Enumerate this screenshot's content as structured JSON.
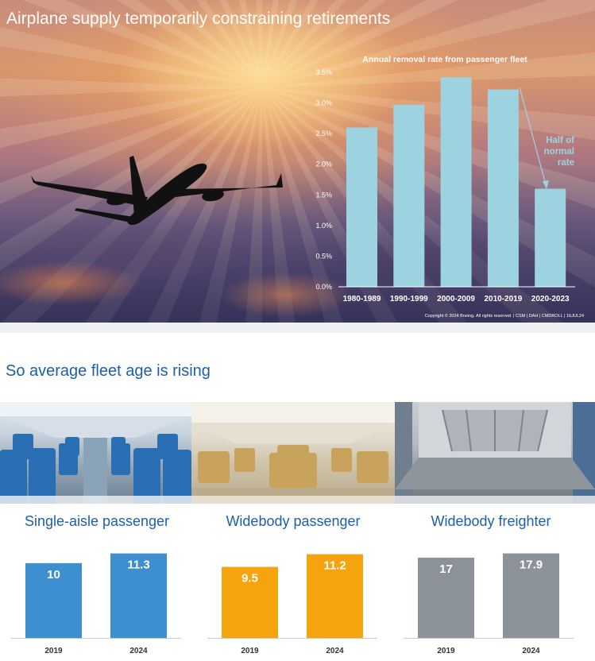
{
  "hero": {
    "title": "Airplane supply temporarily constraining retirements",
    "copyright": "Copyright © 2024 Boeing. All rights reserved.  |  CSM  |  DAH  |  CMDROLL  |  16JUL24"
  },
  "section": {
    "title": "So average fleet age is rising"
  },
  "panels": [
    {
      "title": "Single-aisle passenger",
      "photo_icon": "single-aisle-cabin-photo"
    },
    {
      "title": "Widebody passenger",
      "photo_icon": "widebody-cabin-photo"
    },
    {
      "title": "Widebody freighter",
      "photo_icon": "freighter-cargo-hold-photo"
    }
  ],
  "colors": {
    "removal_bar": "#9dd3e0",
    "single_aisle": "#3d8fd0",
    "widebody_passenger": "#f5a40d",
    "widebody_freighter": "#8c9299",
    "title_blue": "#1d5fa8"
  },
  "chart_data": [
    {
      "type": "bar",
      "title": "Annual removal rate from passenger fleet",
      "categories": [
        "1980-1989",
        "1990-1999",
        "2000-2009",
        "2010-2019",
        "2020-2023"
      ],
      "values": [
        2.6,
        2.97,
        3.42,
        3.22,
        1.6
      ],
      "unit": "%",
      "ylim": [
        0,
        3.5
      ],
      "yticks": [
        "0.0%",
        "0.5%",
        "1.0%",
        "1.5%",
        "2.0%",
        "2.5%",
        "3.0%",
        "3.5%"
      ],
      "annotation": "Half of normal rate",
      "grid": false
    },
    {
      "type": "bar",
      "title": "Single-aisle passenger",
      "categories": [
        "2019",
        "2024"
      ],
      "values": [
        10,
        11.3
      ],
      "value_labels": [
        "10",
        "11.3"
      ],
      "ylim": [
        0,
        12
      ]
    },
    {
      "type": "bar",
      "title": "Widebody passenger",
      "categories": [
        "2019",
        "2024"
      ],
      "values": [
        9.5,
        11.2
      ],
      "value_labels": [
        "9.5",
        "11.2"
      ],
      "ylim": [
        0,
        12
      ]
    },
    {
      "type": "bar",
      "title": "Widebody freighter",
      "categories": [
        "2019",
        "2024"
      ],
      "values": [
        17,
        17.9
      ],
      "value_labels": [
        "17",
        "17.9"
      ],
      "ylim": [
        0,
        19
      ]
    }
  ]
}
